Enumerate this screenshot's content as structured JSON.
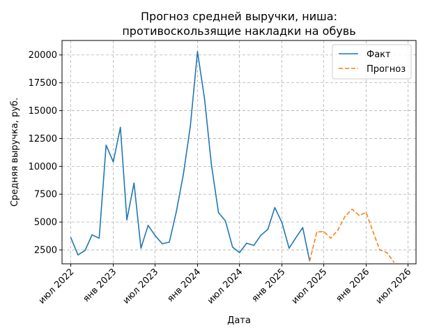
{
  "chart_data": {
    "type": "line",
    "title_lines": [
      "Прогноз средней выручки, ниша:",
      "противоскользящие накладки на обувь"
    ],
    "xlabel": "Дата",
    "ylabel": "Средняя выручка, руб.",
    "grid": true,
    "legend_position": "top-right",
    "x_ticks": [
      {
        "date": "2022-07-01",
        "label": "июл 2022"
      },
      {
        "date": "2023-01-01",
        "label": "янв 2023"
      },
      {
        "date": "2023-07-01",
        "label": "июл 2023"
      },
      {
        "date": "2024-01-01",
        "label": "янв 2024"
      },
      {
        "date": "2024-07-01",
        "label": "июл 2024"
      },
      {
        "date": "2025-01-01",
        "label": "янв 2025"
      },
      {
        "date": "2025-07-01",
        "label": "июл 2025"
      },
      {
        "date": "2026-01-01",
        "label": "янв 2026"
      },
      {
        "date": "2026-07-01",
        "label": "июл 2026"
      }
    ],
    "y_ticks": [
      2500,
      5000,
      7500,
      10000,
      12500,
      15000,
      17500,
      20000
    ],
    "xlim": [
      "2022-05-24",
      "2026-08-05"
    ],
    "ylim": [
      1250,
      21300
    ],
    "series": [
      {
        "name": "Факт",
        "color": "#1f77b4",
        "style": "solid",
        "points": [
          {
            "x": "2022-07-01",
            "y": 3600
          },
          {
            "x": "2022-08-01",
            "y": 2050
          },
          {
            "x": "2022-09-01",
            "y": 2450
          },
          {
            "x": "2022-10-01",
            "y": 3850
          },
          {
            "x": "2022-11-01",
            "y": 3550
          },
          {
            "x": "2022-12-01",
            "y": 11900
          },
          {
            "x": "2023-01-01",
            "y": 10400
          },
          {
            "x": "2023-02-01",
            "y": 13500
          },
          {
            "x": "2023-03-01",
            "y": 5200
          },
          {
            "x": "2023-04-01",
            "y": 8500
          },
          {
            "x": "2023-05-01",
            "y": 2650
          },
          {
            "x": "2023-06-01",
            "y": 4700
          },
          {
            "x": "2023-07-01",
            "y": 3800
          },
          {
            "x": "2023-08-01",
            "y": 3050
          },
          {
            "x": "2023-09-01",
            "y": 3200
          },
          {
            "x": "2023-10-01",
            "y": 5900
          },
          {
            "x": "2023-11-01",
            "y": 9300
          },
          {
            "x": "2023-12-01",
            "y": 13600
          },
          {
            "x": "2024-01-01",
            "y": 20300
          },
          {
            "x": "2024-02-01",
            "y": 16000
          },
          {
            "x": "2024-03-01",
            "y": 10200
          },
          {
            "x": "2024-04-01",
            "y": 5850
          },
          {
            "x": "2024-05-01",
            "y": 5100
          },
          {
            "x": "2024-06-01",
            "y": 2750
          },
          {
            "x": "2024-07-01",
            "y": 2250
          },
          {
            "x": "2024-08-01",
            "y": 3100
          },
          {
            "x": "2024-09-01",
            "y": 2900
          },
          {
            "x": "2024-10-01",
            "y": 3800
          },
          {
            "x": "2024-11-01",
            "y": 4350
          },
          {
            "x": "2024-12-01",
            "y": 6300
          },
          {
            "x": "2025-01-01",
            "y": 4950
          },
          {
            "x": "2025-02-01",
            "y": 2650
          },
          {
            "x": "2025-03-01",
            "y": 3550
          },
          {
            "x": "2025-04-01",
            "y": 4500
          },
          {
            "x": "2025-05-01",
            "y": 1500
          }
        ]
      },
      {
        "name": "Прогноз",
        "color": "#ff7f0e",
        "style": "dashed",
        "points": [
          {
            "x": "2025-05-01",
            "y": 1500
          },
          {
            "x": "2025-06-01",
            "y": 4100
          },
          {
            "x": "2025-07-01",
            "y": 4150
          },
          {
            "x": "2025-08-01",
            "y": 3550
          },
          {
            "x": "2025-09-01",
            "y": 4300
          },
          {
            "x": "2025-10-01",
            "y": 5500
          },
          {
            "x": "2025-11-01",
            "y": 6150
          },
          {
            "x": "2025-12-01",
            "y": 5600
          },
          {
            "x": "2026-01-01",
            "y": 5850
          },
          {
            "x": "2026-02-01",
            "y": 4050
          },
          {
            "x": "2026-03-01",
            "y": 2500
          },
          {
            "x": "2026-04-01",
            "y": 2250
          },
          {
            "x": "2026-05-01",
            "y": 1400
          }
        ]
      }
    ]
  }
}
